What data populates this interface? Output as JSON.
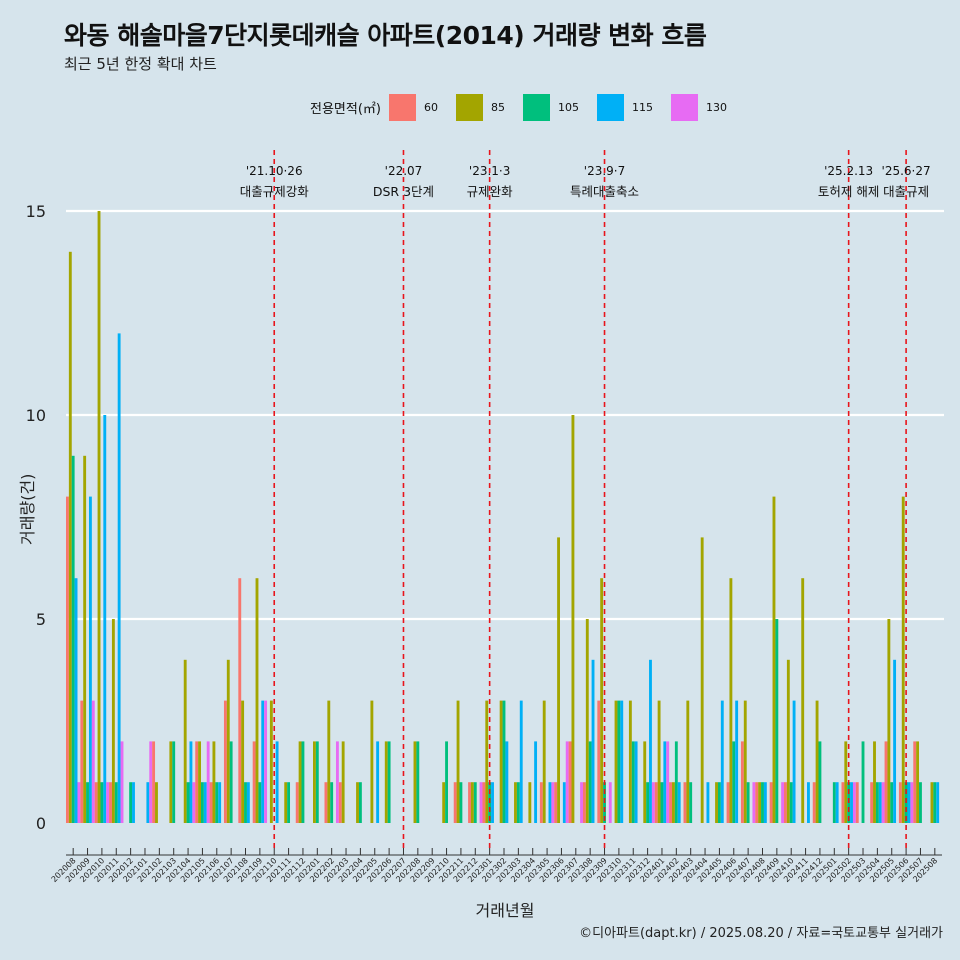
{
  "title": "와동 해솔마을7단지롯데캐슬 아파트(2014) 거래량 변화 흐름",
  "subtitle": "최근 5년 한정 확대 차트",
  "caption": "©디아파트(dapt.kr) / 2025.08.20 / 자료=국토교통부 실거래가",
  "legend_title": "전용면적(㎡)",
  "chart_data": {
    "type": "bar",
    "title": "와동 해솔마을7단지롯데캐슬 아파트(2014) 거래량 변화 흐름",
    "xlabel": "거래년월",
    "ylabel": "거래량(건)",
    "ylim": [
      0,
      16
    ],
    "yticks": [
      0,
      5,
      10,
      15
    ],
    "legend_position": "top",
    "categories": [
      "202008",
      "202009",
      "202010",
      "202011",
      "202012",
      "202101",
      "202102",
      "202103",
      "202104",
      "202105",
      "202106",
      "202107",
      "202108",
      "202109",
      "202110",
      "202111",
      "202112",
      "202201",
      "202202",
      "202203",
      "202204",
      "202205",
      "202206",
      "202207",
      "202208",
      "202209",
      "202210",
      "202211",
      "202212",
      "202301",
      "202302",
      "202303",
      "202304",
      "202305",
      "202306",
      "202307",
      "202308",
      "202309",
      "202310",
      "202311",
      "202312",
      "202401",
      "202402",
      "202403",
      "202404",
      "202405",
      "202406",
      "202407",
      "202408",
      "202409",
      "202410",
      "202411",
      "202412",
      "202501",
      "202502",
      "202503",
      "202504",
      "202505",
      "202506",
      "202507",
      "202508"
    ],
    "series": [
      {
        "name": "60",
        "color": "#f8766d",
        "values": [
          8,
          3,
          1,
          1,
          0,
          0,
          2,
          0,
          0,
          2,
          1,
          3,
          6,
          2,
          0,
          0,
          1,
          0,
          1,
          1,
          0,
          0,
          0,
          0,
          0,
          0,
          0,
          1,
          1,
          1,
          0,
          0,
          0,
          1,
          1,
          2,
          1,
          3,
          0,
          0,
          0,
          1,
          1,
          1,
          0,
          0,
          1,
          2,
          1,
          1,
          1,
          0,
          1,
          0,
          1,
          1,
          1,
          2,
          1,
          2,
          0
        ]
      },
      {
        "name": "85",
        "color": "#a3a500",
        "values": [
          14,
          9,
          15,
          5,
          0,
          0,
          1,
          2,
          4,
          2,
          2,
          4,
          3,
          6,
          3,
          1,
          2,
          2,
          3,
          2,
          1,
          3,
          2,
          0,
          2,
          0,
          1,
          3,
          1,
          3,
          3,
          1,
          1,
          3,
          7,
          10,
          5,
          6,
          3,
          3,
          2,
          3,
          1,
          3,
          7,
          1,
          6,
          3,
          1,
          8,
          4,
          6,
          3,
          0,
          2,
          0,
          2,
          5,
          8,
          2,
          1
        ]
      },
      {
        "name": "105",
        "color": "#00bf7d",
        "values": [
          9,
          1,
          1,
          1,
          1,
          0,
          0,
          2,
          1,
          1,
          1,
          2,
          1,
          1,
          0,
          1,
          2,
          2,
          1,
          0,
          1,
          0,
          2,
          0,
          2,
          0,
          2,
          1,
          1,
          1,
          3,
          1,
          0,
          0,
          0,
          0,
          2,
          1,
          3,
          2,
          1,
          1,
          2,
          1,
          0,
          1,
          2,
          1,
          1,
          5,
          1,
          0,
          2,
          1,
          1,
          2,
          1,
          1,
          1,
          1,
          1
        ]
      },
      {
        "name": "115",
        "color": "#00b0f6",
        "values": [
          6,
          8,
          10,
          12,
          1,
          1,
          0,
          0,
          2,
          1,
          1,
          0,
          1,
          3,
          2,
          0,
          0,
          0,
          0,
          0,
          0,
          2,
          0,
          0,
          0,
          0,
          0,
          0,
          0,
          1,
          2,
          3,
          2,
          1,
          1,
          0,
          4,
          0,
          3,
          2,
          4,
          2,
          1,
          0,
          1,
          3,
          3,
          0,
          1,
          0,
          3,
          1,
          0,
          1,
          1,
          0,
          1,
          4,
          1,
          0,
          1
        ]
      },
      {
        "name": "130",
        "color": "#e76bf3",
        "values": [
          1,
          3,
          1,
          2,
          0,
          2,
          0,
          0,
          1,
          2,
          0,
          0,
          0,
          3,
          0,
          0,
          0,
          0,
          2,
          0,
          0,
          0,
          0,
          0,
          0,
          0,
          0,
          0,
          1,
          0,
          0,
          0,
          0,
          1,
          2,
          1,
          0,
          1,
          0,
          0,
          1,
          2,
          0,
          0,
          0,
          0,
          0,
          1,
          0,
          1,
          0,
          0,
          0,
          0,
          1,
          0,
          1,
          0,
          1,
          0,
          0
        ]
      }
    ],
    "events": [
      {
        "date": "202110",
        "label_top": "'21.10·26",
        "label_bottom": "대출규제강화"
      },
      {
        "date": "202207",
        "label_top": "'22.07",
        "label_bottom": "DSR 3단계"
      },
      {
        "date": "202301",
        "label_top": "'23.1·3",
        "label_bottom": "규제완화"
      },
      {
        "date": "202309",
        "label_top": "'23.9·7",
        "label_bottom": "특례대출축소"
      },
      {
        "date": "202502",
        "label_top": "'25.2.13",
        "label_bottom": "토허제 해제"
      },
      {
        "date": "202506",
        "label_top": "'25.6·27",
        "label_bottom": "대출규제"
      }
    ]
  }
}
